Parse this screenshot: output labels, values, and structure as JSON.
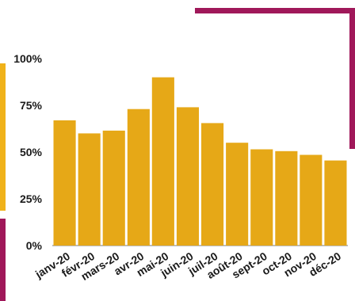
{
  "colors": {
    "bar": "#E6A817",
    "accent_gold": "#F0B21A",
    "accent_magenta": "#A0185A",
    "text": "#1a1a1a",
    "axis": "#7a7a7a"
  },
  "chart_data": {
    "type": "bar",
    "categories": [
      "janv-20",
      "févr-20",
      "mars-20",
      "avr-20",
      "mai-20",
      "juin-20",
      "juil-20",
      "août-20",
      "sept-20",
      "oct-20",
      "nov-20",
      "déc-20"
    ],
    "values": [
      67,
      60,
      61.5,
      73,
      90,
      74,
      65.5,
      55,
      51.5,
      50.5,
      48.5,
      45.5
    ],
    "y_ticks": [
      "0%",
      "25%",
      "50%",
      "75%",
      "100%"
    ],
    "ylim": [
      0,
      100
    ],
    "grid": false
  }
}
